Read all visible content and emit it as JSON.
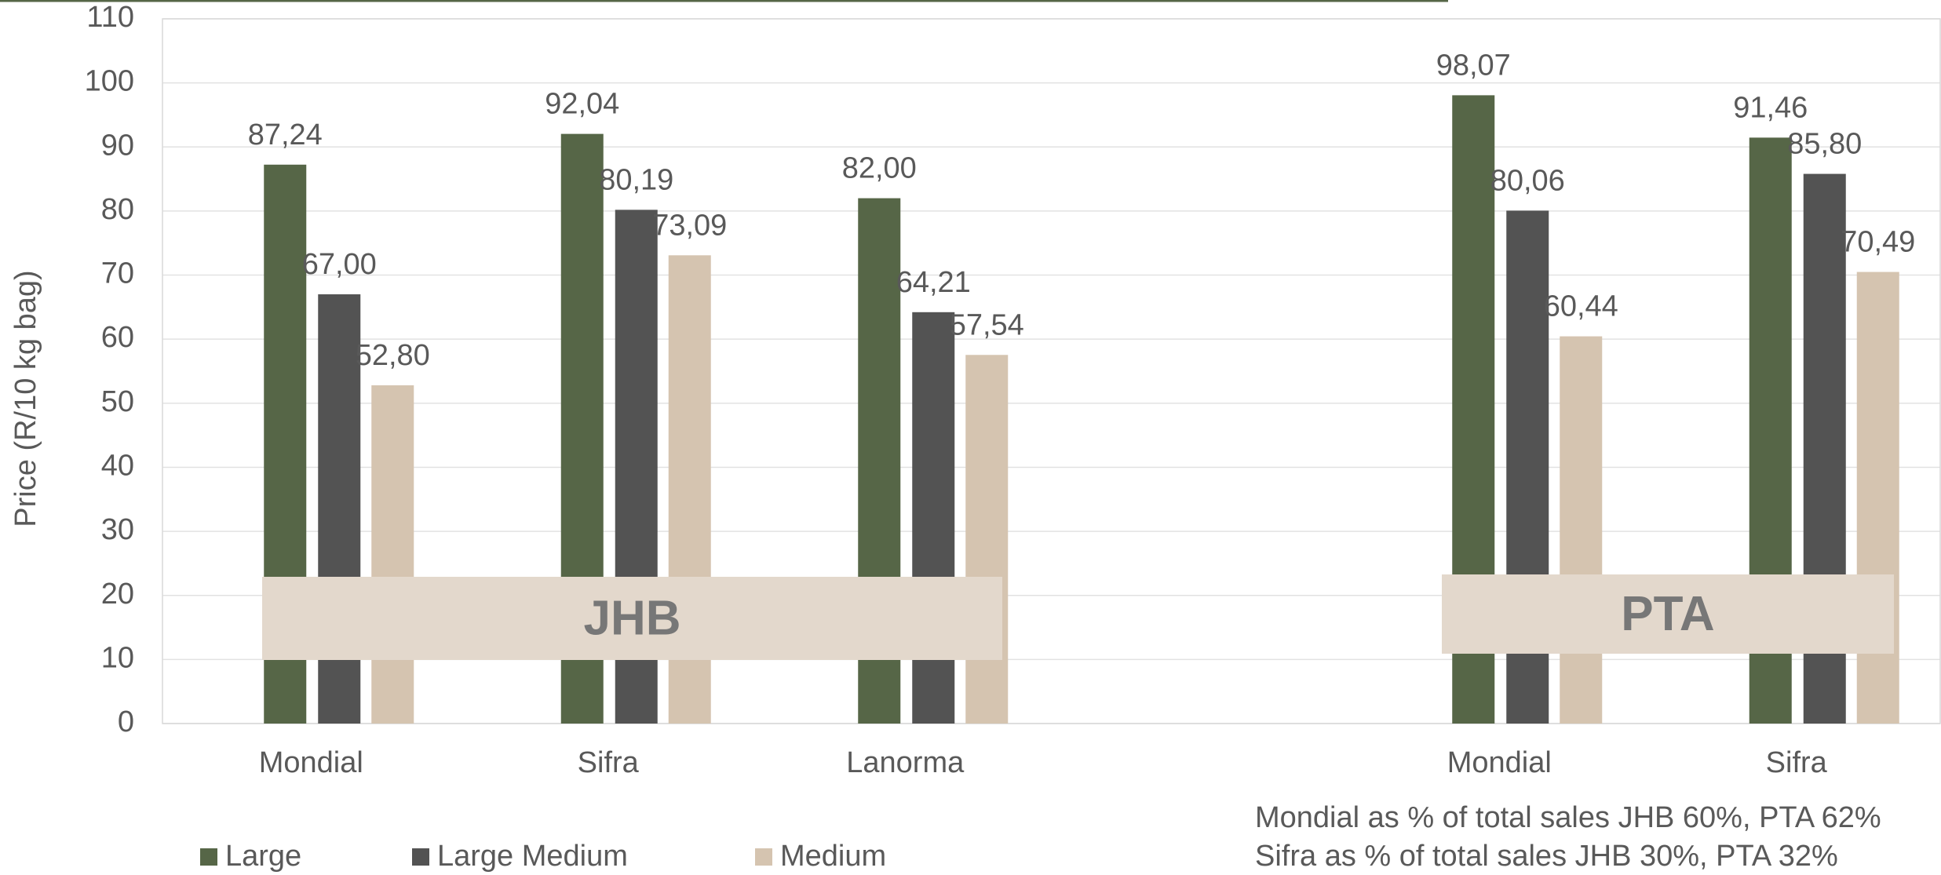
{
  "chart_data": {
    "type": "bar",
    "categories": [
      "Mondial",
      "Sifra",
      "Lanorma",
      null,
      "Mondial",
      "Sifra"
    ],
    "y_label": "Price (R/10 kg bag)",
    "ylim": [
      0,
      110
    ],
    "yticks": [
      0,
      10,
      20,
      30,
      40,
      50,
      60,
      70,
      80,
      90,
      100,
      110
    ],
    "grid": true,
    "series": [
      {
        "name": "Large",
        "color": "#566647",
        "values": [
          87.24,
          92.04,
          82.0,
          null,
          98.07,
          91.46
        ],
        "value_labels": [
          "87,24",
          "92,04",
          "82,00",
          null,
          "98,07",
          "91,46"
        ]
      },
      {
        "name": "Large Medium",
        "color": "#535353",
        "values": [
          67.0,
          80.19,
          64.21,
          null,
          80.06,
          85.8
        ],
        "value_labels": [
          "67,00",
          "80,19",
          "64,21",
          null,
          "80,06",
          "85,80"
        ]
      },
      {
        "name": "Medium",
        "color": "#d5c4b0",
        "values": [
          52.8,
          73.09,
          57.54,
          null,
          60.44,
          70.49
        ],
        "value_labels": [
          "52,80",
          "73,09",
          "57,54",
          null,
          "60,44",
          "70,49"
        ]
      }
    ],
    "group_labels": [
      "JHB",
      "PTA"
    ],
    "notes": [
      "Mondial as % of total sales JHB 60%, PTA 62%",
      "Sifra as % of total sales JHB 30%, PTA 32%"
    ]
  }
}
